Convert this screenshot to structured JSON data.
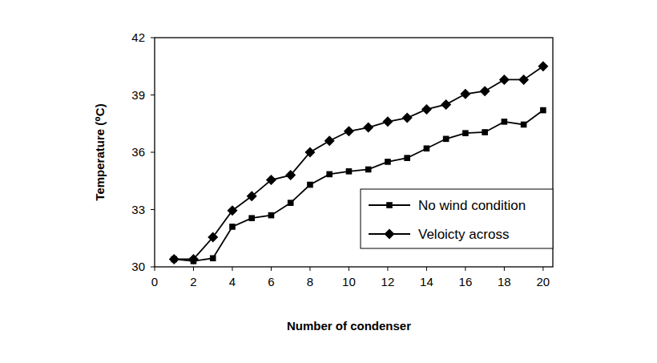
{
  "chart_data": {
    "type": "line",
    "x_label": "Number of condenser",
    "y_label": "Temperature (⁰C)",
    "x": [
      1,
      2,
      3,
      4,
      5,
      6,
      7,
      8,
      9,
      10,
      11,
      12,
      13,
      14,
      15,
      16,
      17,
      18,
      19,
      20
    ],
    "series": [
      {
        "name": "No wind condition",
        "color": "#000000",
        "marker": "square",
        "line_style": "solid",
        "values": [
          30.4,
          30.3,
          30.45,
          32.1,
          32.55,
          32.7,
          33.35,
          34.3,
          34.85,
          35.0,
          35.1,
          35.5,
          35.7,
          36.2,
          36.7,
          37.0,
          37.05,
          37.6,
          37.45,
          38.2
        ]
      },
      {
        "name": "Veloicty across",
        "color": "#000000",
        "marker": "diamond",
        "line_style": "solid",
        "values": [
          30.4,
          30.4,
          31.55,
          32.95,
          33.7,
          34.55,
          34.8,
          36.0,
          36.6,
          37.1,
          37.3,
          37.6,
          37.8,
          38.25,
          38.5,
          39.05,
          39.2,
          39.8,
          39.8,
          40.5
        ]
      }
    ],
    "xlim": [
      0,
      20.5
    ],
    "xticks": [
      0,
      2,
      4,
      6,
      8,
      10,
      12,
      14,
      16,
      18,
      20
    ],
    "ylim": [
      30,
      42
    ],
    "yticks": [
      30,
      33,
      36,
      39,
      42
    ],
    "grid": false,
    "legend": "lower-right"
  }
}
